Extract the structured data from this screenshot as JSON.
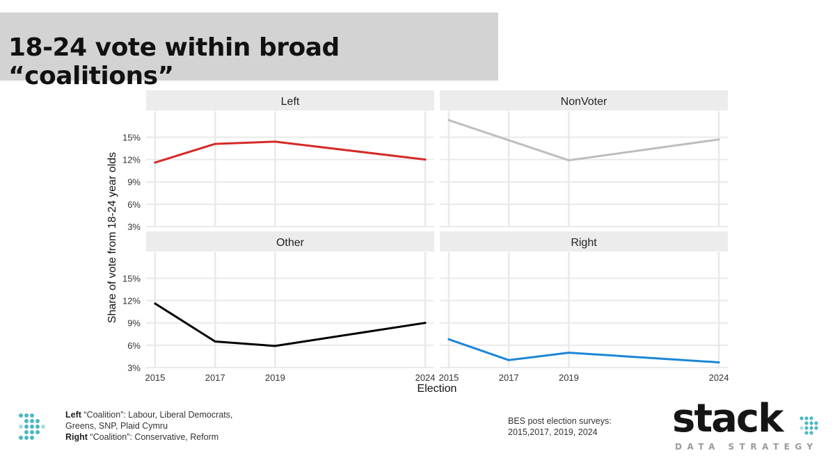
{
  "title": "18-24 vote within broad “coalitions”",
  "chart_data": {
    "type": "line",
    "layout": "facet-grid-2x2",
    "xlabel": "Election",
    "ylabel": "Share of vote from 18-24 year olds",
    "x": [
      2015,
      2017,
      2019,
      2024
    ],
    "x_ticks": [
      "2015",
      "2017",
      "2019",
      "2024"
    ],
    "y_ticks": [
      "3%",
      "6%",
      "9%",
      "12%",
      "15%"
    ],
    "ylim": [
      3,
      18.5
    ],
    "xlim": [
      2014.7,
      2024.3
    ],
    "panels": [
      {
        "name": "Left",
        "color": "#d42a26",
        "values": [
          11.6,
          14.1,
          14.4,
          12.0
        ]
      },
      {
        "name": "NonVoter",
        "color": "#bdbdbd",
        "values": [
          17.3,
          14.6,
          11.9,
          14.7
        ]
      },
      {
        "name": "Other",
        "color": "#000000",
        "values": [
          11.6,
          6.5,
          5.9,
          9.0
        ]
      },
      {
        "name": "Right",
        "color": "#1a86d6",
        "values": [
          6.8,
          4.0,
          5.0,
          3.7
        ]
      }
    ]
  },
  "footnote": {
    "left_bold": "Left",
    "left_text": " “Coalition”: Labour, Liberal Democrats,",
    "left_text2": "Greens, SNP, Plaid Cymru",
    "right_bold": "Right",
    "right_text": " “Coalition”: Conservative, Reform"
  },
  "source": {
    "line1": "BES post election surveys:",
    "line2": "2015,2017, 2019, 2024"
  },
  "brand": {
    "name": "stack",
    "tagline": "DATA STRATEGY",
    "accent_color": "#4bb8c4"
  }
}
